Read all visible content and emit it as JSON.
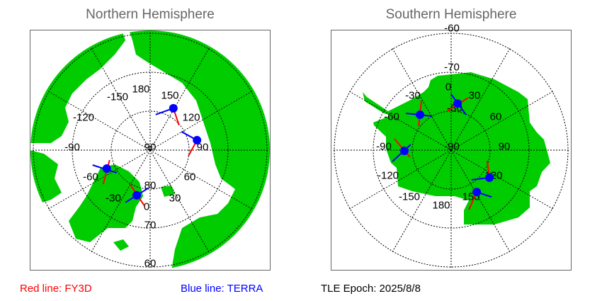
{
  "north": {
    "title": "Northern Hemisphere",
    "lon_labels": [
      "180",
      "150",
      "-150",
      "120",
      "-120",
      "-90",
      "90",
      "-60",
      "60",
      "-30",
      "30",
      "0"
    ],
    "lat_labels": [
      "90",
      "80",
      "70",
      "60"
    ],
    "markers": [
      {
        "lat": 77.7,
        "lon": 151
      },
      {
        "lat": 77.7,
        "lon": 102
      },
      {
        "lat": 77.9,
        "lon": -67
      },
      {
        "lat": 77.9,
        "lon": -16.5
      }
    ]
  },
  "south": {
    "title": "Southern Hemisphere",
    "lon_labels": [
      "0",
      "30",
      "-30",
      "60",
      "-60",
      "90",
      "-90",
      "120",
      "-120",
      "150",
      "-150",
      "180"
    ],
    "lat_labels": [
      "-60",
      "-70",
      "-80",
      "-90"
    ],
    "markers": [
      {
        "lat": -77.9,
        "lon": 7.8
      },
      {
        "lat": -77.9,
        "lon": -41.3
      },
      {
        "lat": -78.0,
        "lon": -90.9
      },
      {
        "lat": -77.9,
        "lon": 125.8
      },
      {
        "lat": -77.4,
        "lon": 148.6
      }
    ]
  },
  "legend": {
    "red": "Red line: FY3D",
    "blue": "Blue line: TERRA",
    "epoch": "TLE Epoch: 2025/8/8"
  },
  "colors": {
    "land": "#00cc00",
    "red_track": "#ff0000",
    "blue_track": "#0000ff",
    "marker": "#0000ff",
    "title": "#666666"
  }
}
